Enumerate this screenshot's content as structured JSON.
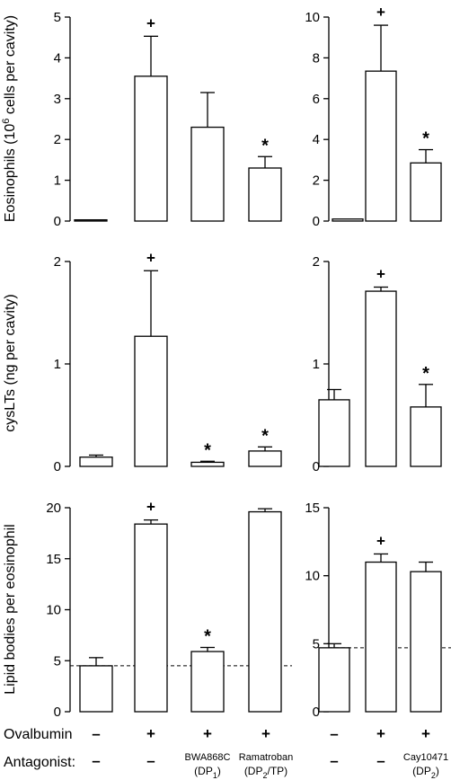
{
  "chart_data": [
    {
      "type": "bar",
      "panel": "top-left",
      "ylabel": "Eosinophils (10^6 cells per cavity)",
      "ylabel_parts": [
        "Eosinophils (10",
        "6",
        " cells per cavity)"
      ],
      "ylim": [
        0,
        5
      ],
      "yticks": [
        "0",
        "1",
        "2",
        "3",
        "4",
        "5"
      ],
      "values": [
        0.03,
        3.55,
        2.3,
        1.3
      ],
      "errors": [
        0,
        0.98,
        0.85,
        0.28
      ],
      "markers": [
        "",
        "+",
        "",
        "*"
      ]
    },
    {
      "type": "bar",
      "panel": "top-right",
      "ylim": [
        0,
        10
      ],
      "yticks": [
        "0",
        "2",
        "4",
        "6",
        "8",
        "10"
      ],
      "values": [
        0.1,
        7.35,
        2.85
      ],
      "errors": [
        0,
        2.25,
        0.65
      ],
      "markers": [
        "",
        "+",
        "*"
      ]
    },
    {
      "type": "bar",
      "panel": "middle-left",
      "ylabel": "cysLTs (ng per cavity)",
      "ylim": [
        0,
        2
      ],
      "yticks": [
        "0",
        "1",
        "2"
      ],
      "values": [
        0.09,
        1.27,
        0.04,
        0.15
      ],
      "errors": [
        0.02,
        0.64,
        0.01,
        0.04
      ],
      "markers": [
        "",
        "+",
        "*",
        "*"
      ]
    },
    {
      "type": "bar",
      "panel": "middle-right",
      "ylim": [
        0,
        2
      ],
      "yticks": [
        "0",
        "1",
        "2"
      ],
      "values": [
        0.65,
        1.71,
        0.58
      ],
      "errors": [
        0.1,
        0.04,
        0.22
      ],
      "markers": [
        "",
        "+",
        "*"
      ]
    },
    {
      "type": "bar",
      "panel": "bottom-left",
      "ylabel": "Lipid bodies per eosinophil",
      "ylim": [
        0,
        20
      ],
      "yticks": [
        "0",
        "5",
        "10",
        "15",
        "20"
      ],
      "values": [
        4.5,
        18.4,
        5.9,
        19.6
      ],
      "errors": [
        0.8,
        0.4,
        0.4,
        0.3
      ],
      "markers": [
        "",
        "+",
        "*",
        ""
      ],
      "baseline": 4.5
    },
    {
      "type": "bar",
      "panel": "bottom-right",
      "ylim": [
        0,
        15
      ],
      "yticks": [
        "0",
        "5",
        "10",
        "15"
      ],
      "values": [
        4.7,
        11.0,
        10.3
      ],
      "errors": [
        0.3,
        0.6,
        0.7
      ],
      "markers": [
        "",
        "+",
        ""
      ],
      "baseline": 4.7
    }
  ],
  "conditions": {
    "ovalbumin_label": "Ovalbumin",
    "antagonist_label": "Antagonist:",
    "left": {
      "ovalbumin": [
        "–",
        "+",
        "+",
        "+"
      ],
      "antagonist": [
        {
          "line1": "–",
          "line2": ""
        },
        {
          "line1": "–",
          "line2": ""
        },
        {
          "line1": "BWA868C",
          "line2": "(DP",
          "sub": "1",
          "tail": ")"
        },
        {
          "line1": "Ramatroban",
          "line2": "(DP",
          "sub": "2",
          "tail": "/TP)"
        }
      ]
    },
    "right": {
      "ovalbumin": [
        "–",
        "+",
        "+"
      ],
      "antagonist": [
        {
          "line1": "–",
          "line2": ""
        },
        {
          "line1": "–",
          "line2": ""
        },
        {
          "line1": "Cay10471",
          "line2": "(DP",
          "sub": "2",
          "tail": ")"
        }
      ]
    }
  }
}
